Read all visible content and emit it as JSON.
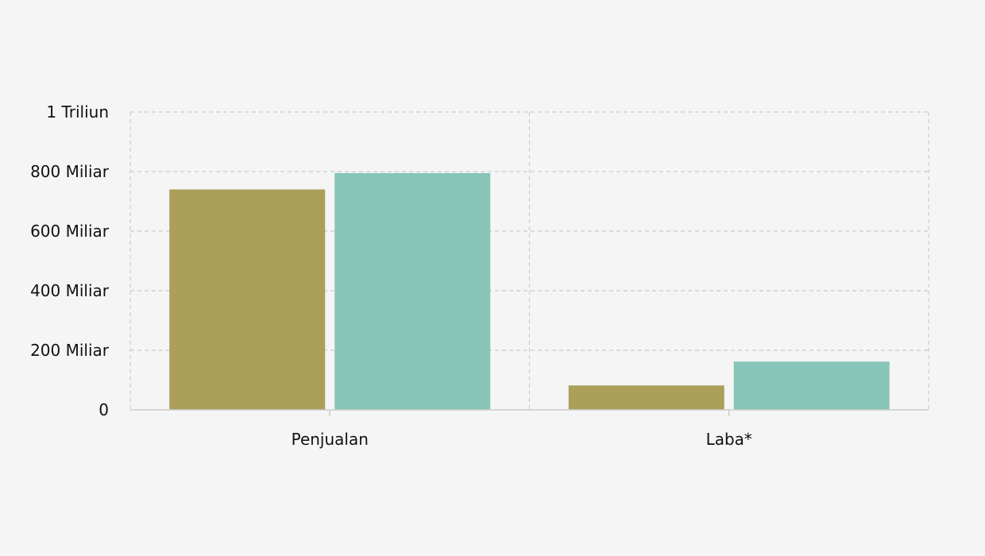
{
  "chart_data": {
    "type": "bar",
    "title": "",
    "xlabel": "",
    "ylabel": "",
    "categories": [
      "Penjualan",
      "Laba*"
    ],
    "series": [
      {
        "color": "#ab9f5a",
        "values": [
          740,
          82
        ]
      },
      {
        "color": "#88c5b9",
        "values": [
          795,
          162
        ]
      }
    ],
    "ylim": [
      0,
      1000
    ],
    "yticks": [
      {
        "value": 0,
        "label": "0"
      },
      {
        "value": 200,
        "label": "200 Miliar"
      },
      {
        "value": 400,
        "label": "400 Miliar"
      },
      {
        "value": 600,
        "label": "600 Miliar"
      },
      {
        "value": 800,
        "label": "800 Miliar"
      },
      {
        "value": 1000,
        "label": "1 Triliun"
      }
    ],
    "grid": true,
    "value_unit": "Miliar"
  },
  "colors": {
    "background": "#f5f5f5",
    "grid": "#cccccc",
    "axis": "#cccccc",
    "text": "#111111"
  }
}
